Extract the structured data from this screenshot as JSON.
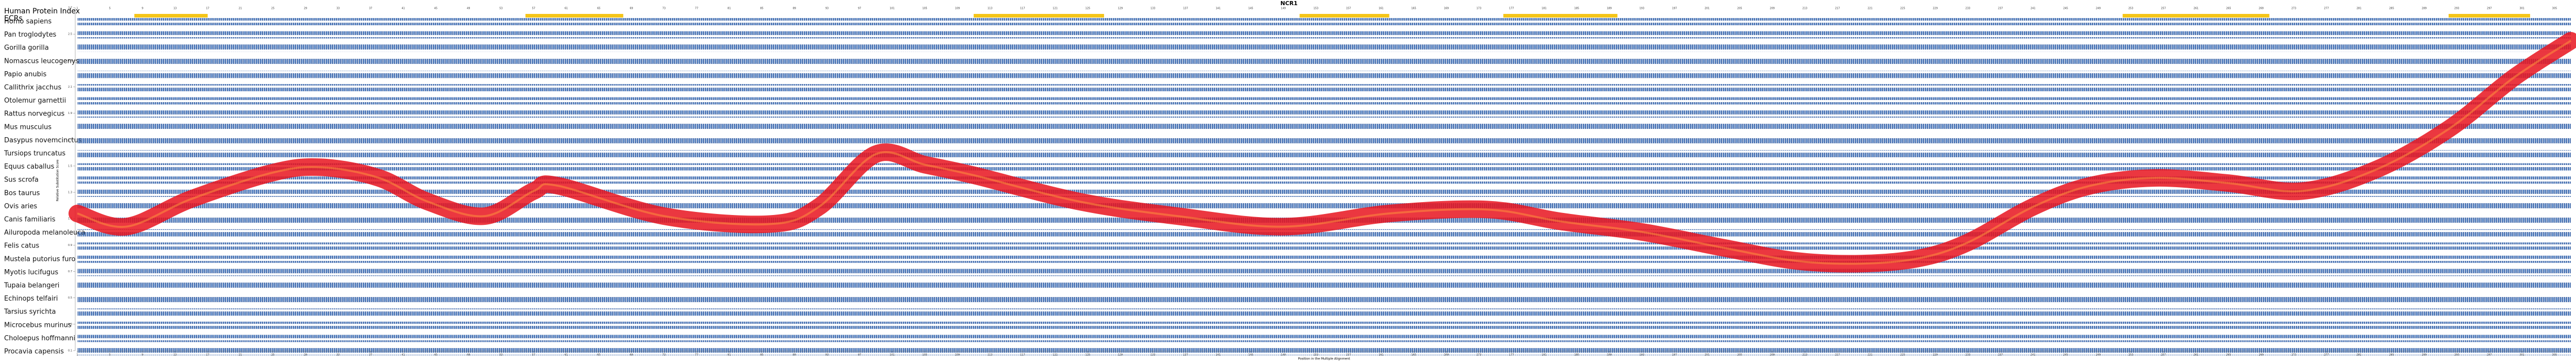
{
  "chart_data": {
    "type": "line",
    "title": "NCR1",
    "index_label": "Human Protein Index",
    "ecr_label": "ECRs",
    "xlabel": "Position in the Multiple Alignment",
    "ylabel": "Relative Substitution Score",
    "species": [
      "Homo sapiens",
      "Pan troglodytes",
      "Gorilla gorilla",
      "Nomascus leucogenys",
      "Papio anubis",
      "Callithrix jacchus",
      "Otolemur garnettii",
      "Rattus norvegicus",
      "Mus musculus",
      "Dasypus novemcinctus",
      "Tursiops truncatus",
      "Equus caballus",
      "Sus scrofa",
      "Bos taurus",
      "Ovis aries",
      "Canis familiaris",
      "Ailuropoda melanoleuca",
      "Felis catus",
      "Mustela putorius furo",
      "Myotis lucifugus",
      "Tupaia belangeri",
      "Echinops telfairi",
      "Tarsius syrichta",
      "Microcebus murinus",
      "Choloepus hoffmanni",
      "Procavia capensis"
    ],
    "ecrs": [
      [
        8,
        17
      ],
      [
        56,
        68
      ],
      [
        111,
        127
      ],
      [
        151,
        162
      ],
      [
        176,
        190
      ],
      [
        252,
        270
      ],
      [
        292,
        302
      ]
    ],
    "ecr_color": "#f5c518",
    "series": [
      {
        "name": "Relative Substitution Score",
        "color": "#e8141e",
        "x": [
          1,
          7,
          15,
          25,
          31,
          38,
          44,
          51,
          57,
          60,
          73,
          86,
          92,
          99,
          105,
          111,
          124,
          136,
          149,
          162,
          174,
          183,
          193,
          203,
          212,
          220,
          227,
          233,
          241,
          248,
          256,
          265,
          274,
          283,
          292,
          300,
          307
        ],
        "values": [
          1.14,
          1.04,
          1.25,
          1.45,
          1.49,
          1.41,
          1.23,
          1.12,
          1.31,
          1.35,
          1.12,
          1.06,
          1.19,
          1.59,
          1.51,
          1.43,
          1.23,
          1.12,
          1.04,
          1.14,
          1.17,
          1.08,
          1.0,
          0.88,
          0.78,
          0.76,
          0.8,
          0.92,
          1.19,
          1.35,
          1.41,
          1.37,
          1.31,
          1.47,
          1.78,
          2.17,
          2.45
        ]
      }
    ],
    "xlim": [
      1,
      307
    ],
    "xticks": [
      1,
      5,
      9,
      13,
      17,
      21,
      25,
      29,
      33,
      37,
      41,
      45,
      49,
      53,
      57,
      61,
      65,
      69,
      73,
      77,
      81,
      85,
      89,
      93,
      97,
      101,
      105,
      109,
      113,
      117,
      121,
      125,
      129,
      133,
      137,
      141,
      145,
      149,
      153,
      157,
      161,
      165,
      169,
      173,
      177,
      181,
      185,
      189,
      193,
      197,
      201,
      205,
      209,
      213,
      217,
      221,
      225,
      229,
      233,
      237,
      241,
      245,
      249,
      253,
      257,
      261,
      265,
      269,
      273,
      277,
      281,
      285,
      289,
      293,
      297,
      301,
      305
    ],
    "ylim": [
      0.1,
      2.7
    ],
    "yticks": [
      0.1,
      0.3,
      0.5,
      0.7,
      0.9,
      1.1,
      1.3,
      1.5,
      1.7,
      1.9,
      2.1,
      2.3,
      2.5,
      2.7
    ]
  }
}
